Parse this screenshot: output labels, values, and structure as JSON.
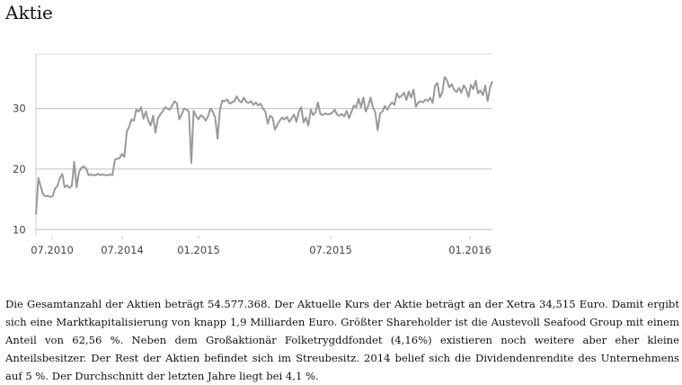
{
  "title": "Aktie",
  "chart_data": {
    "type": "line",
    "title": "",
    "xlabel": "",
    "ylabel": "",
    "x_tick_labels": [
      "07.2010",
      "07.2014",
      "01.2015",
      "07.2015",
      "01.2016"
    ],
    "y_tick_labels": [
      "10",
      "20",
      "30"
    ],
    "ylim": [
      9,
      39
    ],
    "grid": "horizontal",
    "legend": "none",
    "line_color": "#999999",
    "series": [
      {
        "values": [
          12.5,
          18.5,
          17.2,
          15.8,
          15.5,
          15.6,
          15.4,
          15.5,
          16.8,
          17.2,
          18.5,
          19.2,
          17.0,
          17.3,
          16.9,
          17.2,
          21.2,
          17.0,
          19.5,
          20.2,
          20.4,
          20.1,
          19.0,
          19.1,
          19.0,
          19.0,
          19.2,
          19.0,
          19.1,
          19.0,
          19.0,
          19.1,
          19.0,
          21.5,
          21.7,
          21.8,
          22.5,
          22.0,
          26.2,
          27.0,
          28.2,
          28.0,
          29.8,
          29.5,
          30.2,
          28.3,
          29.5,
          28.0,
          27.2,
          28.8,
          26.0,
          28.3,
          29.0,
          29.5,
          30.2,
          30.0,
          29.8,
          30.5,
          31.2,
          30.8,
          28.2,
          29.0,
          30.0,
          29.8,
          29.5,
          21.0,
          29.6,
          28.8,
          28.2,
          28.9,
          28.6,
          28.0,
          28.7,
          30.0,
          29.5,
          28.5,
          25.0,
          29.8,
          31.3,
          31.2,
          31.5,
          30.8,
          31.0,
          31.2,
          32.0,
          31.3,
          31.0,
          31.8,
          31.1,
          30.9,
          31.2,
          30.6,
          31.0,
          30.5,
          30.8,
          30.0,
          29.5,
          27.5,
          28.8,
          28.5,
          26.5,
          27.3,
          28.0,
          28.5,
          28.2,
          28.6,
          27.8,
          28.4,
          29.0,
          27.8,
          29.5,
          30.2,
          27.7,
          28.5,
          27.2,
          29.8,
          28.9,
          29.4,
          31.0,
          29.1,
          28.9,
          29.2,
          29.0,
          29.1,
          29.3,
          29.8,
          29.0,
          28.8,
          29.1,
          28.7,
          29.6,
          28.4,
          29.4,
          30.5,
          30.2,
          31.6,
          30.2,
          31.8,
          29.5,
          30.4,
          31.8,
          30.2,
          29.3,
          26.4,
          29.2,
          29.5,
          30.4,
          29.8,
          30.5,
          31.0,
          30.6,
          32.5,
          31.8,
          32.1,
          32.6,
          31.4,
          32.8,
          31.8,
          33.1,
          30.3,
          31.0,
          31.2,
          31.0,
          31.5,
          31.2,
          31.8,
          30.9,
          33.8,
          34.2,
          31.8,
          32.6,
          35.2,
          34.6,
          33.5,
          34.0,
          33.1,
          32.7,
          33.4,
          32.6,
          33.8,
          33.2,
          31.9,
          33.9,
          33.2,
          34.6,
          32.5,
          33.0,
          32.2,
          33.8,
          31.2,
          33.4,
          34.5
        ]
      }
    ]
  },
  "paragraph": "Die Gesamtanzahl der Aktien beträgt 54.577.368. Der Aktuelle Kurs der Aktie beträgt an der Xetra 34,515 Euro. Damit ergibt sich eine Marktkapitalisierung von knapp 1,9 Milliarden Euro. Größter Shareholder ist die Austevoll Seafood Group mit einem Anteil von 62,56 %. Neben dem Großaktionär Folketrygddfondet (4,16%) existieren noch weitere aber eher kleine Anteilsbesitzer. Der Rest der Aktien befindet sich im Streubesitz. 2014 belief sich die Dividendenrendite des Unternehmens auf 5 %. Der Durchschnitt der letzten Jahre liegt bei 4,1 %."
}
